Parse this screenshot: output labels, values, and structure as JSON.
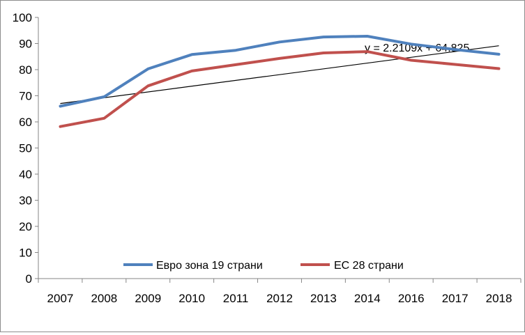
{
  "chart_data": {
    "type": "line",
    "title": "",
    "xlabel": "",
    "ylabel": "",
    "categories": [
      "2007",
      "2008",
      "2009",
      "2010",
      "2011",
      "2012",
      "2013",
      "2014",
      "2016",
      "2017",
      "2018"
    ],
    "ylim": [
      0,
      100
    ],
    "yticks": [
      0,
      10,
      20,
      30,
      40,
      50,
      60,
      70,
      80,
      90,
      100
    ],
    "grid": false,
    "legend_position": "bottom-inside",
    "series": [
      {
        "name": "Евро зона 19 страни",
        "color": "#4F81BD",
        "values": [
          66.0,
          69.6,
          80.3,
          85.8,
          87.4,
          90.6,
          92.5,
          92.8,
          89.8,
          87.7,
          85.9
        ]
      },
      {
        "name": "ЕС 28 страни",
        "color": "#C0504D",
        "values": [
          58.2,
          61.4,
          73.8,
          79.5,
          81.9,
          84.3,
          86.4,
          86.9,
          83.6,
          82.0,
          80.4
        ]
      }
    ],
    "trendline": {
      "color": "#000000",
      "slope": 2.2109,
      "intercept": 64.825,
      "equation_label": "y = 2.2109x + 64.825"
    }
  }
}
